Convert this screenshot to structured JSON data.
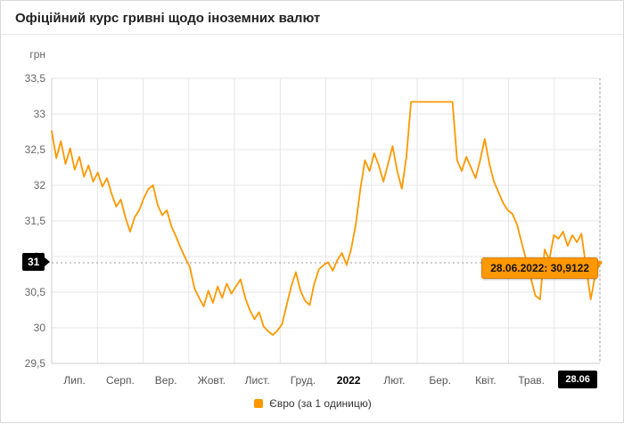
{
  "header": {
    "title": "Офіційний курс гривні щодо іноземних валют"
  },
  "chart": {
    "y_unit": "грн",
    "crosshair": {
      "y_label": "31",
      "x_label": "28.06"
    },
    "tooltip": {
      "text": "28.06.2022: 30,9122"
    }
  },
  "chart_data": {
    "type": "line",
    "title": "Офіційний курс гривні щодо іноземних валют",
    "ylabel": "грн",
    "ylim": [
      29.5,
      33.5
    ],
    "y_ticks": [
      "29,5",
      "30",
      "30,5",
      "31",
      "31,5",
      "32",
      "32,5",
      "33",
      "33,5"
    ],
    "x_labels": [
      "Лип.",
      "Серп.",
      "Вер.",
      "Жовт.",
      "Лист.",
      "Груд.",
      "2022",
      "Лют.",
      "Бер.",
      "Квіт.",
      "Трав.",
      "28.06"
    ],
    "x_bold_label": "2022",
    "grid": true,
    "legend_position": "bottom",
    "colors": {
      "line": "#ff9800",
      "tooltip_bg": "#ff9800",
      "crosshair_label_bg": "#000000",
      "grid": "#e6e6e6",
      "axis": "#cccccc",
      "crosshair_line": "#999999"
    },
    "series": [
      {
        "name": "Євро (за 1 одиницю)",
        "color": "#ff9800",
        "last_point": {
          "date": "28.06.2022",
          "value": 30.9122,
          "label": "28.06.2022: 30,9122"
        },
        "values": [
          32.76,
          32.38,
          32.62,
          32.3,
          32.52,
          32.22,
          32.4,
          32.12,
          32.28,
          32.05,
          32.18,
          31.98,
          32.1,
          31.88,
          31.7,
          31.8,
          31.55,
          31.35,
          31.55,
          31.65,
          31.82,
          31.95,
          32.0,
          31.72,
          31.58,
          31.65,
          31.42,
          31.28,
          31.12,
          30.98,
          30.85,
          30.55,
          30.42,
          30.3,
          30.52,
          30.35,
          30.58,
          30.42,
          30.62,
          30.48,
          30.58,
          30.68,
          30.42,
          30.25,
          30.12,
          30.22,
          30.02,
          29.95,
          29.9,
          29.96,
          30.05,
          30.32,
          30.58,
          30.78,
          30.52,
          30.38,
          30.32,
          30.62,
          30.82,
          30.88,
          30.92,
          30.8,
          30.95,
          31.05,
          30.88,
          31.1,
          31.45,
          31.95,
          32.35,
          32.2,
          32.45,
          32.28,
          32.05,
          32.3,
          32.55,
          32.2,
          31.95,
          32.4,
          33.17,
          33.17,
          33.17,
          33.17,
          33.17,
          33.17,
          33.17,
          33.17,
          33.17,
          33.17,
          32.35,
          32.2,
          32.4,
          32.25,
          32.1,
          32.35,
          32.65,
          32.3,
          32.05,
          31.9,
          31.75,
          31.65,
          31.6,
          31.45,
          31.2,
          30.95,
          30.7,
          30.45,
          30.4,
          31.1,
          30.95,
          31.3,
          31.25,
          31.35,
          31.15,
          31.3,
          31.2,
          31.32,
          30.85,
          30.4,
          30.75,
          30.9122
        ]
      }
    ]
  }
}
